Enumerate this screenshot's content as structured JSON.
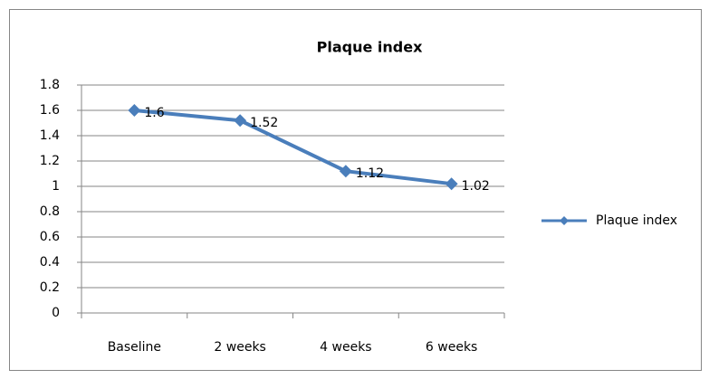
{
  "chart_data": {
    "type": "line",
    "title": "Plaque index",
    "categories": [
      "Baseline",
      "2 weeks",
      "4 weeks",
      "6 weeks"
    ],
    "series": [
      {
        "name": "Plaque index",
        "color": "#4a7ebb",
        "values": [
          1.6,
          1.52,
          1.12,
          1.02
        ]
      }
    ],
    "ylim": [
      0,
      1.8
    ],
    "yticks": [
      0,
      0.2,
      0.4,
      0.6,
      0.8,
      1,
      1.2,
      1.4,
      1.6,
      1.8
    ],
    "grid": true,
    "legend": "right",
    "data_labels": true
  }
}
